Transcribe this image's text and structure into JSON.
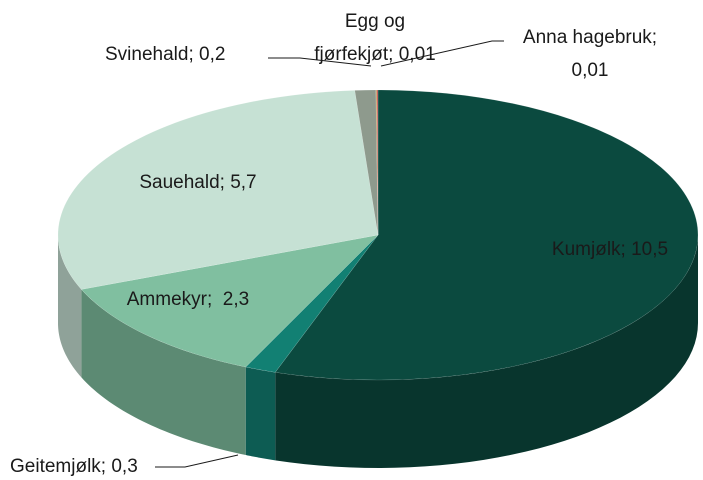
{
  "chart_data": {
    "type": "pie",
    "values": [
      10.5,
      0.3,
      2.3,
      5.7,
      0.2,
      0.01,
      0.01
    ],
    "value_labels": [
      "Kumjølk; 10,5",
      "Geitemjølk; 0,3",
      "Ammekyr;  2,3",
      "Sauehald; 5,7",
      "Svinehald; 0,2",
      "Egg og\nfjørfekjøt; 0,01",
      "Anna hagebruk;\n0,01"
    ],
    "colors": [
      "#0b4a3f",
      "#128073",
      "#80bfa0",
      "#c6e1d4",
      "#8e9a8d",
      "#c49a5c",
      "#c0504d"
    ]
  }
}
